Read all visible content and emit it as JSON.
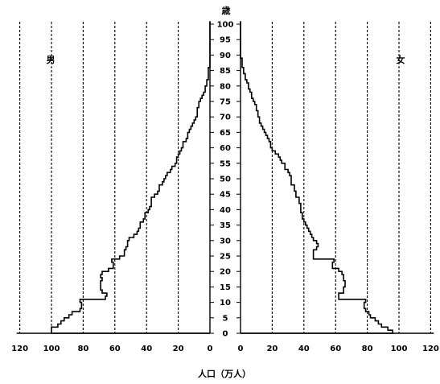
{
  "chart_data": {
    "type": "bar",
    "orientation": "horizontal-population-pyramid",
    "xlabel": "人口（万人）",
    "ylabel": "歳",
    "left_label": "男",
    "right_label": "女",
    "y_ticks": [
      0,
      5,
      10,
      15,
      20,
      25,
      30,
      35,
      40,
      45,
      50,
      55,
      60,
      65,
      70,
      75,
      80,
      85,
      90,
      95,
      100
    ],
    "x_ticks_left": [
      "120",
      "100",
      "80",
      "60",
      "40",
      "20",
      "0"
    ],
    "x_ticks_right": [
      "0",
      "20",
      "40",
      "60",
      "80",
      "100",
      "120"
    ],
    "xlim": [
      0,
      120
    ],
    "ylim": [
      0,
      100
    ],
    "grid": "vertical dashed every 20",
    "series": [
      {
        "name": "男",
        "ages": [
          0,
          1,
          2,
          3,
          4,
          5,
          6,
          7,
          8,
          9,
          10,
          11,
          12,
          13,
          14,
          15,
          16,
          17,
          18,
          19,
          20,
          21,
          22,
          23,
          24,
          25,
          26,
          27,
          28,
          29,
          30,
          31,
          32,
          33,
          34,
          35,
          36,
          37,
          38,
          39,
          40,
          41,
          42,
          43,
          44,
          45,
          46,
          47,
          48,
          49,
          50,
          51,
          52,
          53,
          54,
          55,
          56,
          57,
          58,
          59,
          60,
          61,
          62,
          63,
          64,
          65,
          66,
          67,
          68,
          69,
          70,
          71,
          72,
          73,
          74,
          75,
          76,
          77,
          78,
          79,
          80,
          81,
          82,
          83,
          84,
          85,
          86,
          87,
          88,
          89,
          90,
          91,
          92,
          93,
          94,
          95,
          96,
          97,
          98,
          99,
          100
        ],
        "values": [
          100,
          100,
          96,
          94,
          92,
          89,
          87,
          82,
          81,
          81,
          82,
          66,
          65,
          68,
          69,
          69,
          69,
          68,
          69,
          68,
          64,
          61,
          61,
          62,
          57,
          54,
          54,
          53,
          52,
          52,
          51,
          48,
          46,
          45,
          44,
          44,
          42,
          41,
          41,
          39,
          38,
          37,
          37,
          37,
          35,
          33,
          32,
          32,
          30,
          29,
          28,
          27,
          25,
          24,
          22,
          21,
          21,
          20,
          19,
          18,
          17,
          17,
          15,
          14,
          14,
          13,
          12,
          11,
          10,
          9,
          8,
          8,
          8,
          7,
          7,
          6,
          5,
          4,
          3,
          3,
          2,
          2,
          1,
          1,
          1,
          1,
          0,
          0,
          0,
          0,
          0,
          0,
          0,
          0,
          0,
          0,
          0,
          0,
          0,
          0,
          0
        ]
      },
      {
        "name": "女",
        "ages": [
          0,
          1,
          2,
          3,
          4,
          5,
          6,
          7,
          8,
          9,
          10,
          11,
          12,
          13,
          14,
          15,
          16,
          17,
          18,
          19,
          20,
          21,
          22,
          23,
          24,
          25,
          26,
          27,
          28,
          29,
          30,
          31,
          32,
          33,
          34,
          35,
          36,
          37,
          38,
          39,
          40,
          41,
          42,
          43,
          44,
          45,
          46,
          47,
          48,
          49,
          50,
          51,
          52,
          53,
          54,
          55,
          56,
          57,
          58,
          59,
          60,
          61,
          62,
          63,
          64,
          65,
          66,
          67,
          68,
          69,
          70,
          71,
          72,
          73,
          74,
          75,
          76,
          77,
          78,
          79,
          80,
          81,
          82,
          83,
          84,
          85,
          86,
          87,
          88,
          89,
          90,
          91,
          92,
          93,
          94,
          95,
          96,
          97,
          98,
          99,
          100
        ],
        "values": [
          96,
          93,
          89,
          87,
          85,
          82,
          81,
          79,
          78,
          78,
          79,
          62,
          62,
          65,
          65,
          66,
          66,
          65,
          65,
          64,
          62,
          58,
          58,
          59,
          46,
          46,
          46,
          48,
          49,
          48,
          46,
          45,
          44,
          43,
          42,
          41,
          40,
          39,
          39,
          38,
          38,
          38,
          37,
          37,
          35,
          35,
          34,
          34,
          32,
          32,
          32,
          31,
          30,
          28,
          28,
          26,
          25,
          24,
          22,
          20,
          19,
          19,
          18,
          17,
          16,
          15,
          14,
          13,
          12,
          12,
          11,
          11,
          10,
          10,
          9,
          8,
          7,
          7,
          6,
          5,
          5,
          4,
          3,
          3,
          2,
          2,
          1,
          1,
          1,
          0,
          0,
          0,
          0,
          0,
          0,
          0,
          0,
          0,
          0,
          0,
          0
        ]
      }
    ]
  }
}
